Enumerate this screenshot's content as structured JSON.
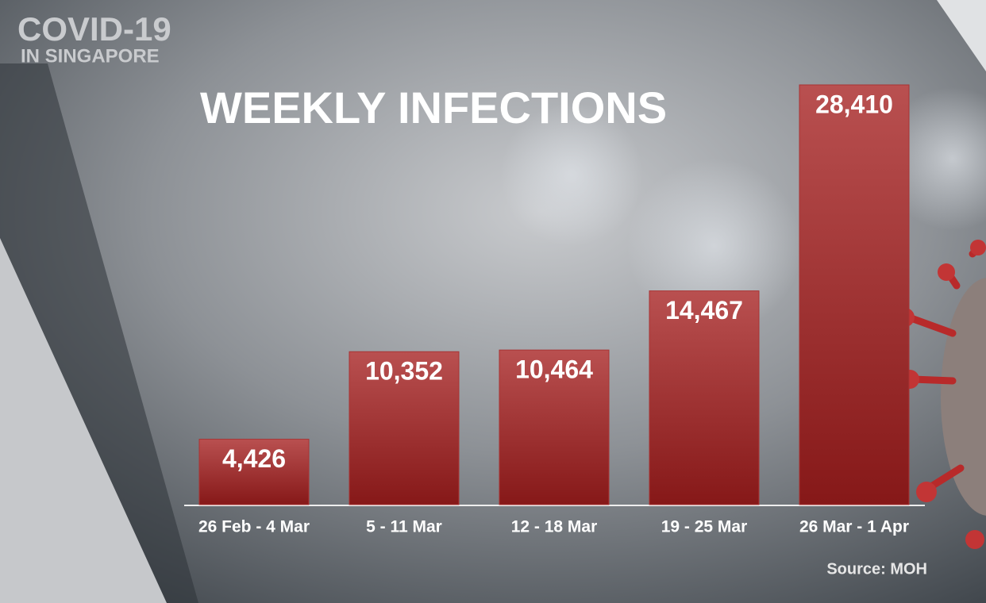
{
  "chart_data": {
    "type": "bar",
    "brand": [
      "COVID-19",
      "IN SINGAPORE"
    ],
    "title": "WEEKLY INFECTIONS",
    "categories": [
      "26 Feb - 4 Mar",
      "5 - 11 Mar",
      "12 - 18 Mar",
      "19 - 25 Mar",
      "26 Mar - 1 Apr"
    ],
    "values": [
      4426,
      10352,
      10464,
      14467,
      28410
    ],
    "value_labels": [
      "4,426",
      "10,352",
      "10,464",
      "14,467",
      "28,410"
    ],
    "color": "#a83434",
    "source": "Source: MOH"
  }
}
